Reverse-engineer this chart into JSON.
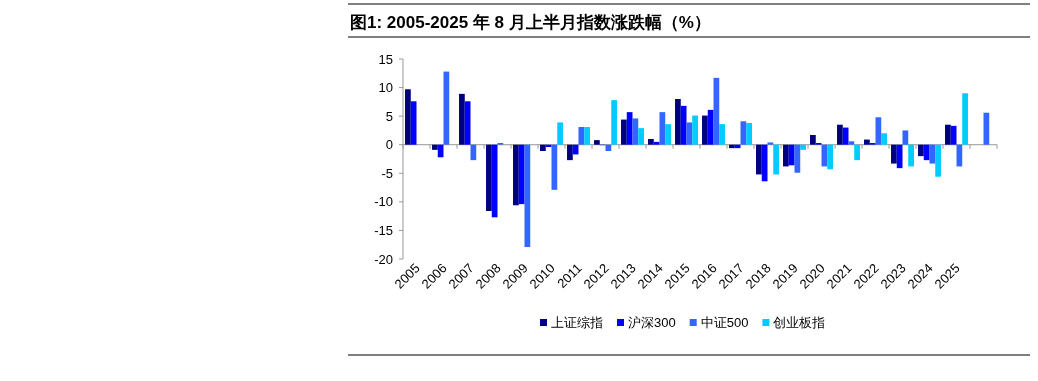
{
  "chart_data": {
    "type": "bar",
    "title": "图1:  2005-2025 年 8 月上半月指数涨跌幅（%）",
    "categories": [
      "2005",
      "2006",
      "2007",
      "2008",
      "2009",
      "2010",
      "2011",
      "2012",
      "2013",
      "2014",
      "2015",
      "2016",
      "2017",
      "2018",
      "2019",
      "2020",
      "2021",
      "2022",
      "2023",
      "2024",
      "2025",
      null
    ],
    "series": [
      {
        "name": "上证综指",
        "color": "#000080",
        "values": [
          9.7,
          -0.9,
          8.9,
          -11.6,
          -10.6,
          -1.1,
          -2.7,
          0.8,
          4.4,
          1.0,
          8.0,
          5.1,
          -0.6,
          -5.2,
          -3.8,
          1.7,
          3.5,
          0.9,
          -3.3,
          -2.0,
          3.5,
          null
        ]
      },
      {
        "name": "沪深300",
        "color": "#0000ff",
        "values": [
          7.6,
          -2.2,
          7.6,
          -12.7,
          -10.4,
          -0.4,
          -1.7,
          0.0,
          5.7,
          0.5,
          6.8,
          6.1,
          -0.6,
          -6.4,
          -3.6,
          0.3,
          3.0,
          0.3,
          -4.1,
          -2.7,
          3.3,
          null
        ]
      },
      {
        "name": "中证500",
        "color": "#3366ff",
        "values": [
          null,
          12.8,
          -2.7,
          0.3,
          -17.9,
          -7.9,
          3.1,
          -1.1,
          4.6,
          5.7,
          3.9,
          11.7,
          4.1,
          0.4,
          -4.9,
          -3.8,
          0.6,
          4.8,
          2.5,
          -3.3,
          -3.8,
          5.6
        ]
      },
      {
        "name": "创业板指",
        "color": "#00ccff",
        "values": [
          null,
          null,
          null,
          null,
          null,
          3.9,
          3.1,
          7.8,
          2.9,
          3.6,
          5.1,
          3.6,
          3.8,
          -5.2,
          -0.9,
          -4.3,
          -2.7,
          2.0,
          -3.8,
          -5.6,
          9.0,
          null
        ]
      }
    ],
    "ylim": [
      -20,
      15
    ],
    "yticks": [
      -20,
      -15,
      -10,
      -5,
      0,
      5,
      10,
      15
    ],
    "legend": "bottom"
  }
}
